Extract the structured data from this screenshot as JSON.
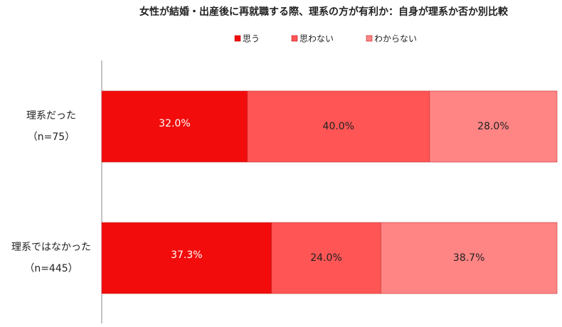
{
  "chart_data": {
    "type": "stacked-bar-horizontal",
    "title": "女性が結婚・出産後に再就職する際、理系の方が有利か：自身が理系か否か別比較",
    "categories": [
      "理系だった\n（n=75）",
      "理系ではなかった\n（n=445）"
    ],
    "series": [
      {
        "name": "思う",
        "color": "#f20c0c",
        "label_color": "#ffffff",
        "values": [
          32.0,
          37.3
        ],
        "value_labels": [
          "32.0%",
          "37.3%"
        ]
      },
      {
        "name": "思わない",
        "color": "#ff5555",
        "label_color": "#222222",
        "values": [
          40.0,
          24.0
        ],
        "value_labels": [
          "40.0%",
          "24.0%"
        ]
      },
      {
        "name": "わからない",
        "color": "#ff8585",
        "label_color": "#222222",
        "values": [
          28.0,
          38.7
        ],
        "value_labels": [
          "28.0%",
          "38.7%"
        ]
      }
    ],
    "xlim": [
      0,
      100
    ]
  }
}
